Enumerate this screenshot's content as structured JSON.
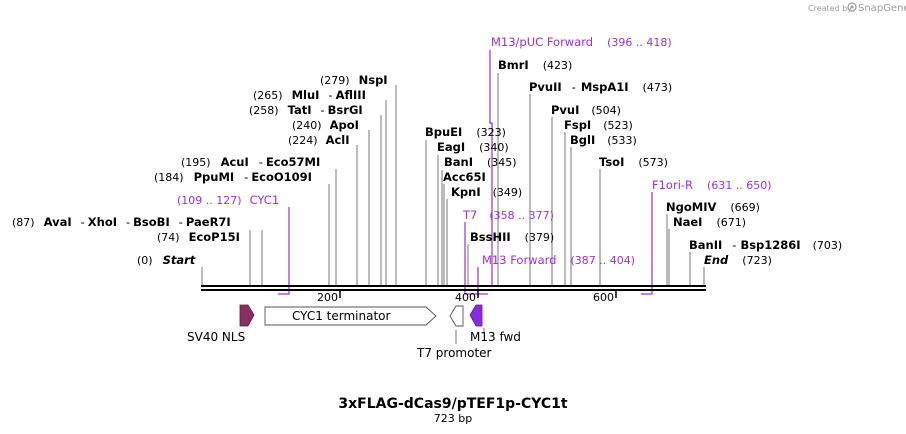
{
  "branding": {
    "created_by": "Created by",
    "app_name": "SnapGene"
  },
  "title": "3xFLAG-dCas9/pTEF1p-CYC1t",
  "length_label": "723 bp",
  "axis": {
    "ticks": [
      "200",
      "400",
      "600"
    ]
  },
  "colors": {
    "primer": "#9b30d9",
    "sv40_nls": "#8b2f62",
    "m13_fwd": "#8a2be2"
  },
  "sites": {
    "start": {
      "pos": "(0)",
      "name": "Start"
    },
    "end": {
      "name": "End",
      "pos": "(723)"
    },
    "ecop15i": {
      "pos": "(74)",
      "name": "EcoP15I"
    },
    "ava_group": {
      "pos": "(87)",
      "n1": "AvaI",
      "sep1": "-",
      "n2": "XhoI",
      "sep2": "-",
      "n3": "BsoBI",
      "sep3": "-",
      "n4": "PaeR7I"
    },
    "ppumi": {
      "pos": "(184)",
      "n1": "PpuMI",
      "sep": "-",
      "n2": "EcoO109I"
    },
    "acui": {
      "pos": "(195)",
      "n1": "AcuI",
      "sep": "-",
      "n2": "Eco57MI"
    },
    "acli": {
      "pos": "(224)",
      "name": "AclI"
    },
    "apoi": {
      "pos": "(240)",
      "name": "ApoI"
    },
    "tati": {
      "pos": "(258)",
      "n1": "TatI",
      "sep": "-",
      "n2": "BsrGI"
    },
    "mlui": {
      "pos": "(265)",
      "n1": "MluI",
      "sep": "-",
      "n2": "AflIII"
    },
    "nspi": {
      "pos": "(279)",
      "name": "NspI"
    },
    "bpuei": {
      "name": "BpuEI",
      "pos": "(323)"
    },
    "eagi": {
      "name": "EagI",
      "pos": "(340)"
    },
    "bani": {
      "name": "BanI",
      "pos": "(345)"
    },
    "acc65i": {
      "name": "Acc65I"
    },
    "kpni": {
      "name": "KpnI",
      "pos": "(349)"
    },
    "bsshii": {
      "name": "BssHII",
      "pos": "(379)"
    },
    "bmri": {
      "name": "BmrI",
      "pos": "(423)"
    },
    "pvuii": {
      "n1": "PvuII",
      "sep": "-",
      "n2": "MspA1I",
      "pos": "(473)"
    },
    "pvui": {
      "name": "PvuI",
      "pos": "(504)"
    },
    "fspi": {
      "name": "FspI",
      "pos": "(523)"
    },
    "bgli": {
      "name": "BglI",
      "pos": "(533)"
    },
    "tsoi": {
      "name": "TsoI",
      "pos": "(573)"
    },
    "ngomiv": {
      "name": "NgoMIV",
      "pos": "(669)"
    },
    "naei": {
      "name": "NaeI",
      "pos": "(671)"
    },
    "banii": {
      "n1": "BanII",
      "sep": "-",
      "n2": "Bsp1286I",
      "pos": "(703)"
    }
  },
  "primers": {
    "m13_puc_forward": {
      "name": "M13/pUC Forward",
      "range": "(396 .. 418)"
    },
    "cyc1": {
      "range": "(109 .. 127)",
      "name": "CYC1"
    },
    "t7": {
      "name": "T7",
      "range": "(358 .. 377)"
    },
    "m13_forward": {
      "name": "M13 Forward",
      "range": "(387 .. 404)"
    },
    "f1ori_r": {
      "name": "F1ori-R",
      "range": "(631 .. 650)"
    }
  },
  "features": {
    "sv40_nls": "SV40 NLS",
    "cyc1_terminator": "CYC1 terminator",
    "t7_promoter": "T7 promoter",
    "m13_fwd": "M13 fwd"
  }
}
